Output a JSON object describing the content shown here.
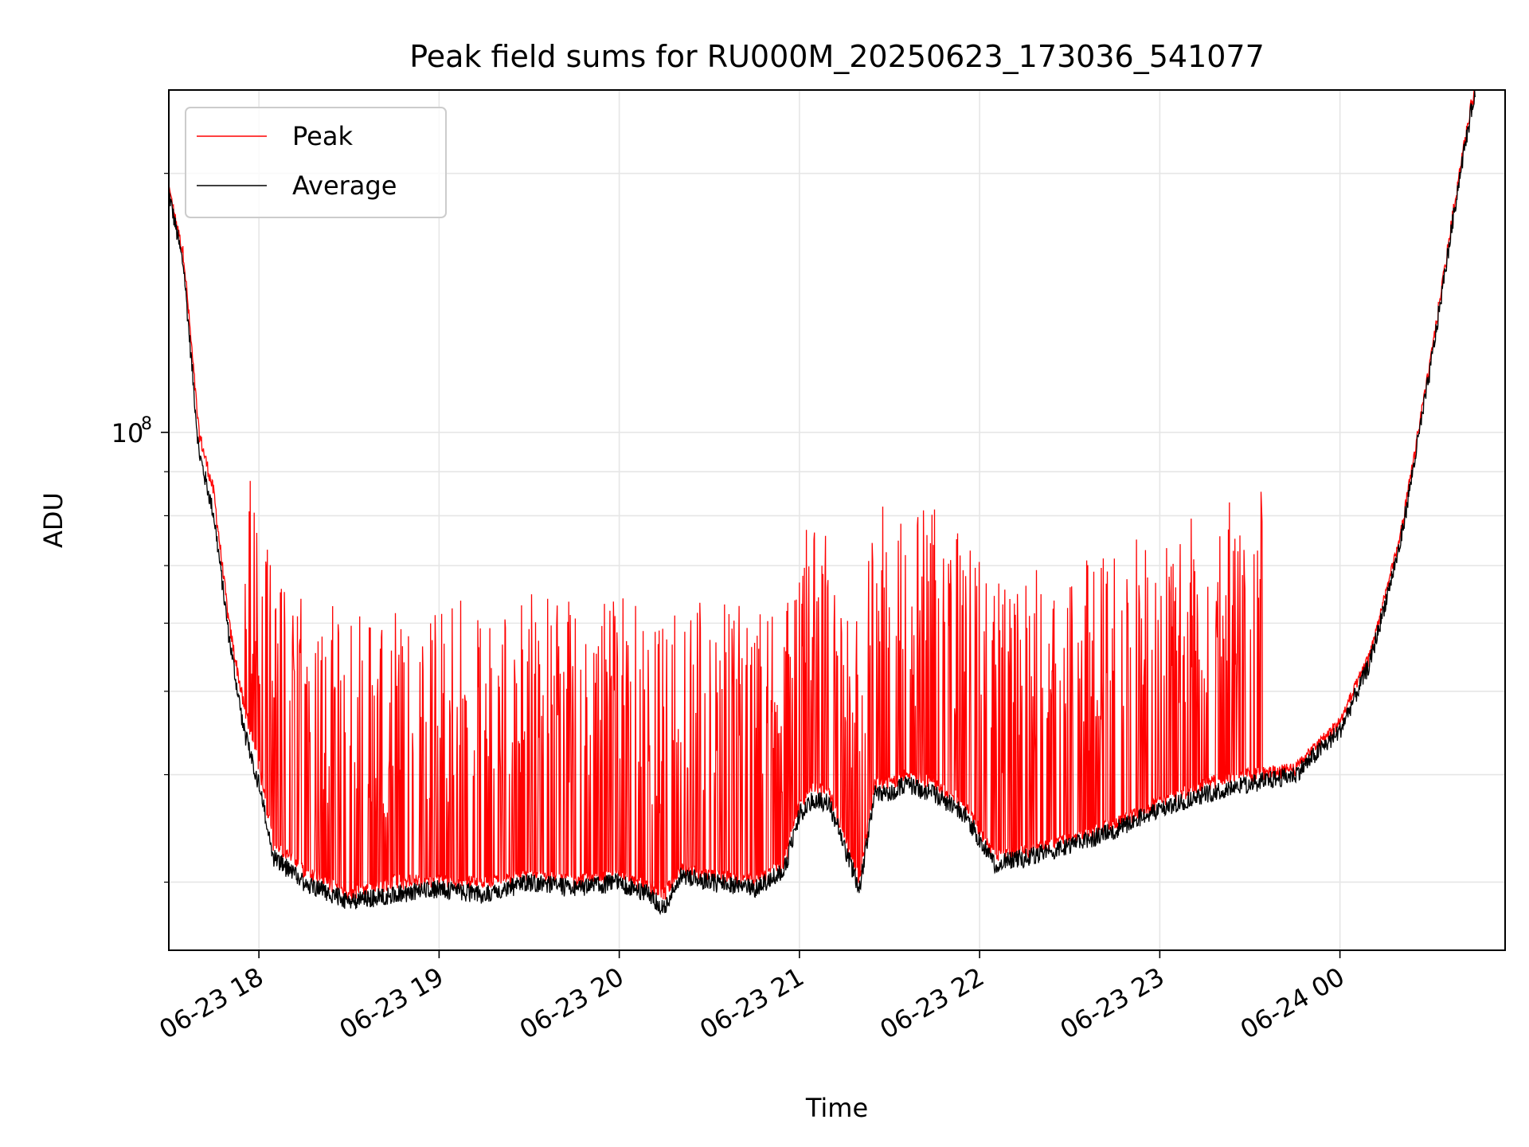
{
  "chart_data": {
    "type": "line",
    "title": "Peak field sums for RU000M_20250623_173036_541077",
    "xlabel": "Time",
    "ylabel": "ADU",
    "y_scale": "log",
    "y_tick_labels": [
      {
        "value": 100000000,
        "base": "10",
        "exponent": "8"
      }
    ],
    "x_ticks": [
      {
        "label": "06-23 18",
        "time": "2025-06-23 18:00"
      },
      {
        "label": "06-23 19",
        "time": "2025-06-23 19:00"
      },
      {
        "label": "06-23 20",
        "time": "2025-06-23 20:00"
      },
      {
        "label": "06-23 21",
        "time": "2025-06-23 21:00"
      },
      {
        "label": "06-23 22",
        "time": "2025-06-23 22:00"
      },
      {
        "label": "06-23 23",
        "time": "2025-06-23 23:00"
      },
      {
        "label": "06-24 00",
        "time": "2025-06-24 00:00"
      }
    ],
    "xlim": [
      "2025-06-23 17:30",
      "2025-06-24 00:55"
    ],
    "ylim": [
      25000000,
      250000000
    ],
    "grid": true,
    "legend_position": "upper-left",
    "x": [
      "2025-06-23 17:30",
      "2025-06-23 17:35",
      "2025-06-23 17:40",
      "2025-06-23 17:45",
      "2025-06-23 17:50",
      "2025-06-23 17:55",
      "2025-06-23 18:00",
      "2025-06-23 18:05",
      "2025-06-23 18:10",
      "2025-06-23 18:15",
      "2025-06-23 18:30",
      "2025-06-23 18:45",
      "2025-06-23 19:00",
      "2025-06-23 19:15",
      "2025-06-23 19:30",
      "2025-06-23 19:45",
      "2025-06-23 20:00",
      "2025-06-23 20:10",
      "2025-06-23 20:15",
      "2025-06-23 20:20",
      "2025-06-23 20:30",
      "2025-06-23 20:45",
      "2025-06-23 20:55",
      "2025-06-23 21:00",
      "2025-06-23 21:05",
      "2025-06-23 21:10",
      "2025-06-23 21:15",
      "2025-06-23 21:20",
      "2025-06-23 21:25",
      "2025-06-23 21:30",
      "2025-06-23 21:35",
      "2025-06-23 21:45",
      "2025-06-23 21:55",
      "2025-06-23 22:05",
      "2025-06-23 22:15",
      "2025-06-23 22:30",
      "2025-06-23 22:45",
      "2025-06-23 23:00",
      "2025-06-23 23:15",
      "2025-06-23 23:30",
      "2025-06-23 23:45",
      "2025-06-24 00:00",
      "2025-06-24 00:10",
      "2025-06-24 00:20",
      "2025-06-24 00:30",
      "2025-06-24 00:40",
      "2025-06-24 00:45"
    ],
    "series": [
      {
        "name": "Peak",
        "color": "#ff0000",
        "kind": "spiky",
        "values": [
          190000000,
          160000000,
          100000000,
          85000000,
          60000000,
          48000000,
          41000000,
          33000000,
          32000000,
          31000000,
          29000000,
          30000000,
          30000000,
          30000000,
          30500000,
          30000000,
          30500000,
          29500000,
          29000000,
          31000000,
          30500000,
          30000000,
          31500000,
          37000000,
          38500000,
          38000000,
          34000000,
          30000000,
          39000000,
          39000000,
          40000000,
          39000000,
          37000000,
          32000000,
          32500000,
          33500000,
          35000000,
          37000000,
          39000000,
          40000000,
          40500000,
          46000000,
          55000000,
          75000000,
          120000000,
          200000000,
          250000000
        ]
      },
      {
        "name": "Average",
        "color": "#000000",
        "kind": "baseline",
        "values": [
          190000000,
          155000000,
          95000000,
          80000000,
          58000000,
          45000000,
          39000000,
          32000000,
          31000000,
          30000000,
          28500000,
          29000000,
          29500000,
          29000000,
          30000000,
          29500000,
          30000000,
          29000000,
          28000000,
          30500000,
          30000000,
          29500000,
          31000000,
          36000000,
          37500000,
          37000000,
          33000000,
          29500000,
          38000000,
          38000000,
          39000000,
          38000000,
          36000000,
          31500000,
          32000000,
          33000000,
          34500000,
          36500000,
          38000000,
          39000000,
          40000000,
          45000000,
          54000000,
          74000000,
          118000000,
          200000000,
          250000000
        ]
      }
    ]
  }
}
